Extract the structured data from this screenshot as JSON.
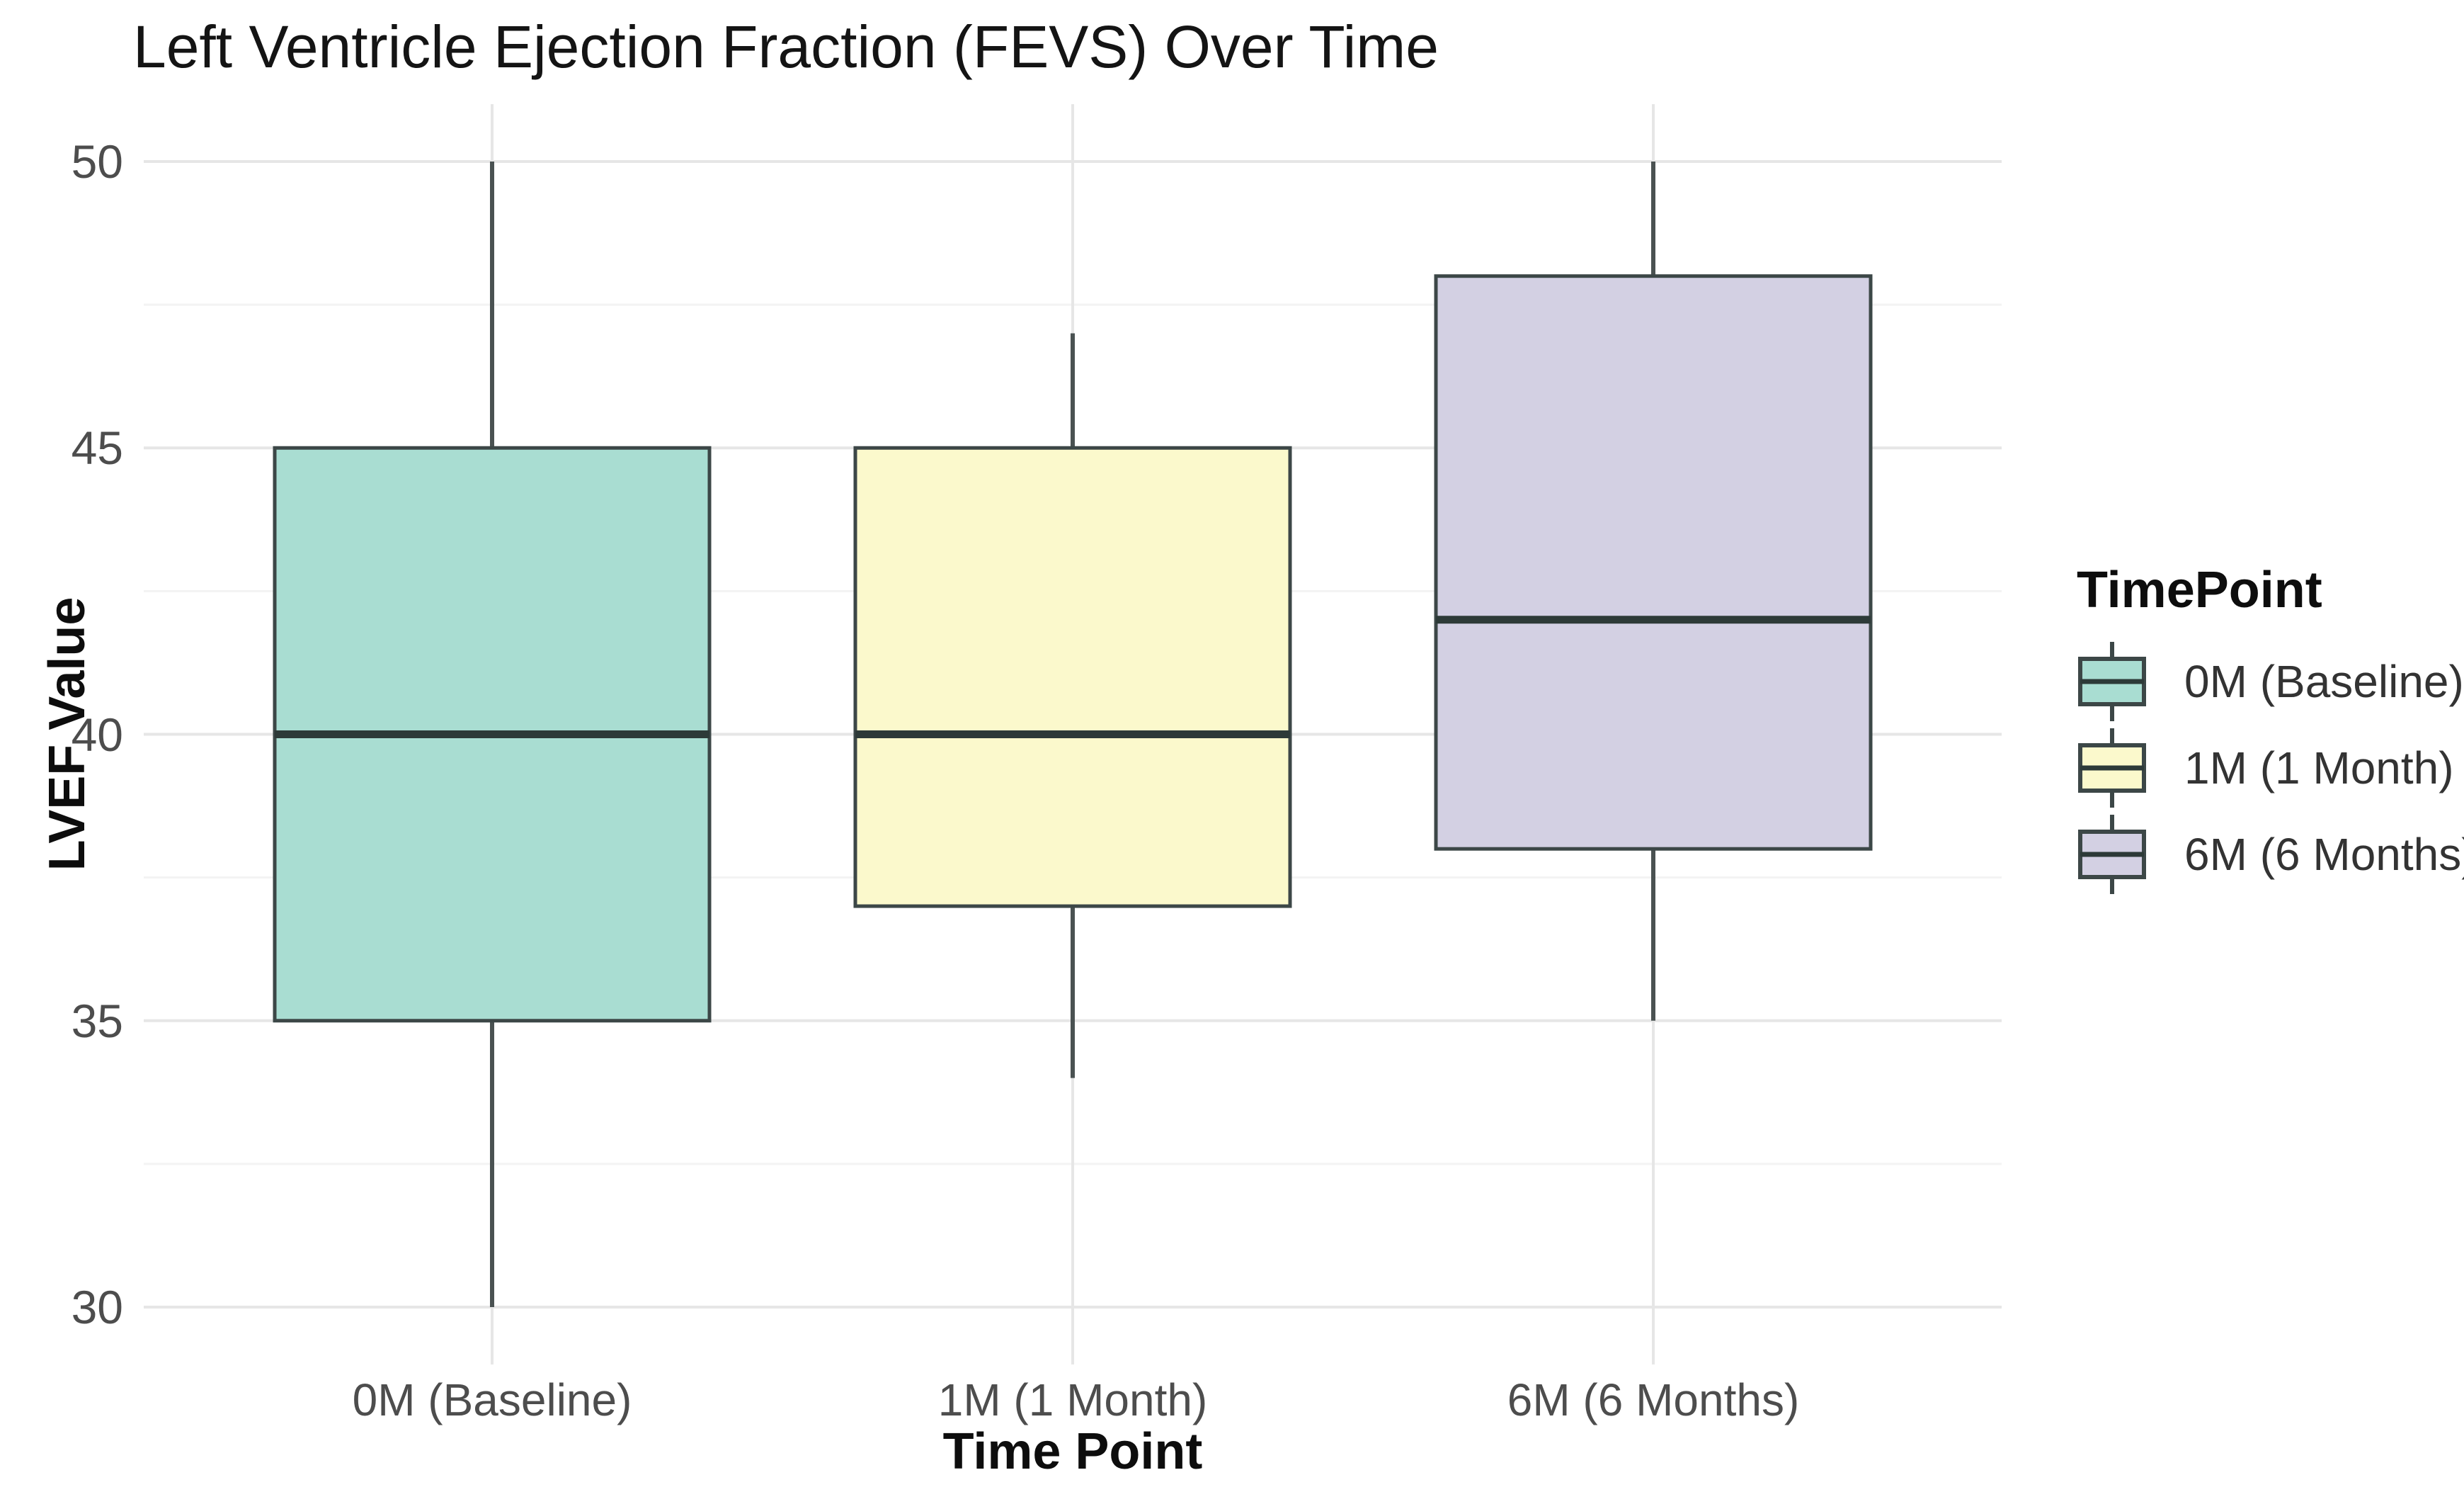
{
  "chart_data": {
    "type": "boxplot",
    "title": "Left Ventricle Ejection Fraction (FEVS) Over Time",
    "xlabel": "Time Point",
    "ylabel": "LVEF Value",
    "legend_title": "TimePoint",
    "legend_position": "right",
    "grid": "major and minor horizontal gridlines, vertical major at categories",
    "ylim": [
      29,
      51
    ],
    "y_ticks": [
      50,
      45,
      40,
      35,
      30
    ],
    "y_minor_ticks": [
      47.5,
      42.5,
      37.5,
      32.5
    ],
    "categories": [
      "0M (Baseline)",
      "1M (1 Month)",
      "6M (6 Months)"
    ],
    "series": [
      {
        "name": "0M (Baseline)",
        "color": "#A9DDD2",
        "min": 30,
        "q1": 35,
        "median": 40,
        "q3": 45,
        "max": 50
      },
      {
        "name": "1M (1 Month)",
        "color": "#FBF9CC",
        "min": 34,
        "q1": 37,
        "median": 40,
        "q3": 45,
        "max": 47
      },
      {
        "name": "6M (6 Months)",
        "color": "#D3D0E3",
        "min": 35,
        "q1": 38,
        "median": 42,
        "q3": 48,
        "max": 50
      }
    ],
    "colors": {
      "box_border": "#3c4747",
      "median_line": "#2d3a38",
      "whisker": "#4a5252",
      "grid_major": "#e6e6e6",
      "grid_minor": "#f3f3f3",
      "tick_label": "#4d4d4d",
      "title_text": "#141414",
      "background": "#ffffff"
    }
  }
}
